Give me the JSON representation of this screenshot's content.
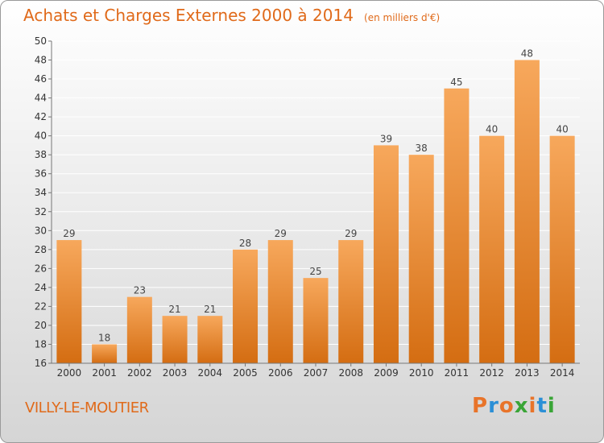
{
  "header": {
    "title": "Achats et Charges Externes 2000 à 2014",
    "unit": "(en milliers d'€)"
  },
  "footer": {
    "commune": "VILLY-LE-MOUTIER",
    "logo": "Proxiti"
  },
  "colors": {
    "title": "#e06a1a",
    "bar_light": "#f7a85c",
    "bar_dark": "#d46d12",
    "logo_letters": [
      "#e8742a",
      "#2b8fd6",
      "#e8742a",
      "#3aa537",
      "#e8742a",
      "#2b8fd6",
      "#3aa537"
    ]
  },
  "chart_data": {
    "type": "bar",
    "title": "Achats et Charges Externes 2000 à 2014",
    "subtitle": "(en milliers d'€)",
    "categories": [
      "2000",
      "2001",
      "2002",
      "2003",
      "2004",
      "2005",
      "2006",
      "2007",
      "2008",
      "2009",
      "2010",
      "2011",
      "2012",
      "2013",
      "2014"
    ],
    "values": [
      29,
      18,
      23,
      21,
      21,
      28,
      29,
      25,
      29,
      39,
      38,
      45,
      40,
      48,
      40
    ],
    "ylim": [
      16,
      50
    ],
    "yticks": [
      16,
      18,
      20,
      22,
      24,
      26,
      28,
      30,
      32,
      34,
      36,
      38,
      40,
      42,
      44,
      46,
      48,
      50
    ],
    "grid": true,
    "legend": "none",
    "xlabel": "",
    "ylabel": ""
  }
}
